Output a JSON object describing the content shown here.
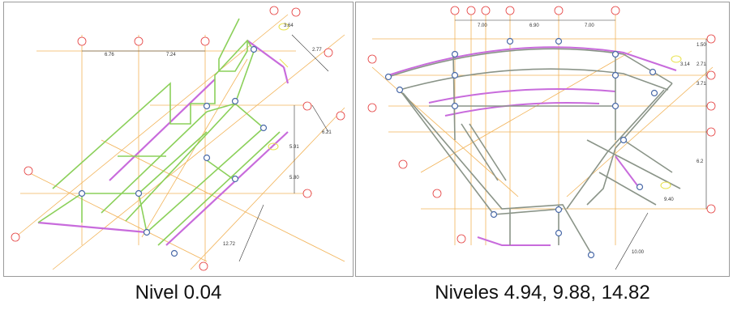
{
  "captions": {
    "left": "Nivel 0.04",
    "right": "Niveles 4.94, 9.88, 14.82"
  },
  "left_dims": {
    "d1": "6.76",
    "d2": "7.24",
    "d3": "3.64",
    "d4": "2.77",
    "d5": "6.21",
    "d6": "5.91",
    "d7": "5.80",
    "d8": "12.72"
  },
  "right_dims": {
    "d1": "7.00",
    "d2": "6.90",
    "d3": "7.00",
    "d4": "1.50",
    "d5": "3.14",
    "d6": "2.71",
    "d7": "3.71",
    "d8": "6.2",
    "d9": "9.40",
    "d10": "10.00"
  },
  "colors": {
    "grid_orange": "#f2b45a",
    "axis_red": "#e43a3a",
    "slab_magenta": "#c86bdc",
    "beam_green": "#8bd05a",
    "beam_gray": "#8a9488",
    "column_blue": "#4a6aa8",
    "dim_line": "#333333",
    "yellow_note": "#e8e24a"
  }
}
